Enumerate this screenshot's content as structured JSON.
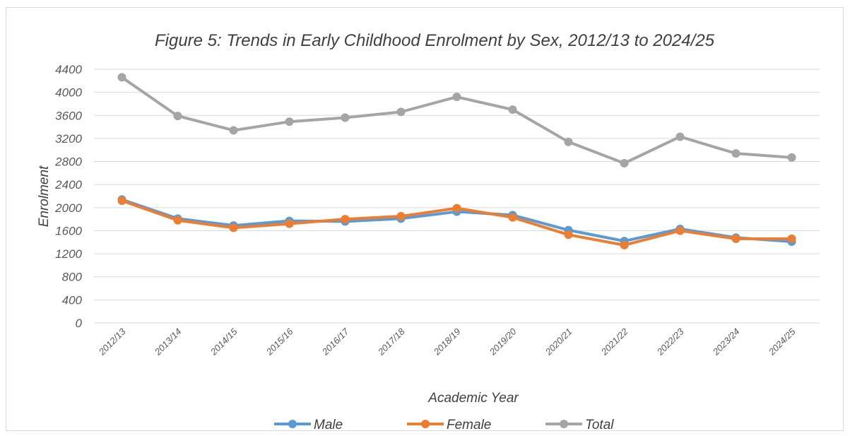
{
  "chart_data": {
    "type": "line",
    "title": "Figure 5: Trends in Early Childhood Enrolment by Sex, 2012/13 to 2024/25",
    "xlabel": "Academic Year",
    "ylabel": "Enrolment",
    "ylim": [
      0,
      4400
    ],
    "yticks": [
      0,
      400,
      800,
      1200,
      1600,
      2000,
      2400,
      2800,
      3200,
      3600,
      4000,
      4400
    ],
    "grid": true,
    "legend_position": "bottom",
    "categories": [
      "2012/13",
      "2013/14",
      "2014/15",
      "2015/16",
      "2016/17",
      "2017/18",
      "2018/19",
      "2019/20",
      "2020/21",
      "2021/22",
      "2022/23",
      "2023/24",
      "2024/25"
    ],
    "series": [
      {
        "name": "Male",
        "color": "#5b9bd5",
        "values": [
          2140,
          1810,
          1690,
          1770,
          1760,
          1810,
          1930,
          1870,
          1610,
          1420,
          1630,
          1480,
          1410
        ]
      },
      {
        "name": "Female",
        "color": "#ed7d31",
        "values": [
          2120,
          1780,
          1650,
          1720,
          1800,
          1850,
          1990,
          1830,
          1530,
          1350,
          1600,
          1460,
          1460
        ]
      },
      {
        "name": "Total",
        "color": "#a5a5a5",
        "values": [
          4260,
          3590,
          3340,
          3490,
          3560,
          3660,
          3920,
          3700,
          3140,
          2770,
          3230,
          2940,
          2870
        ]
      }
    ]
  }
}
